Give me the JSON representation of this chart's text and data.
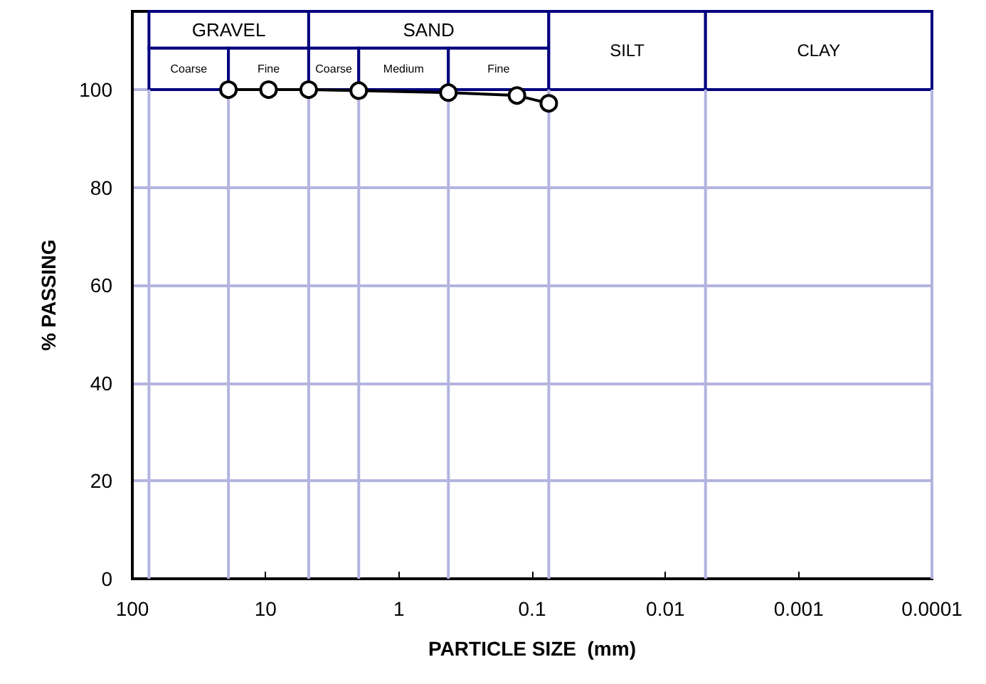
{
  "chart_data": {
    "type": "line",
    "xlabel": "PARTICLE SIZE  (mm)",
    "ylabel": "% PASSING",
    "series": [
      {
        "color": "#000000",
        "x": [
          19,
          9.5,
          4.75,
          2.0,
          0.425,
          0.13,
          0.075
        ],
        "values": [
          100,
          100,
          100,
          99.8,
          99.4,
          98.8,
          97.2
        ]
      }
    ],
    "xlim": [
      100,
      0.0001
    ],
    "xticks": [
      100,
      10,
      1,
      0.1,
      0.01,
      0.001,
      0.0001
    ],
    "log": "x",
    "ylim": [
      0,
      116
    ],
    "yticks": [
      0,
      20,
      40,
      60,
      80,
      100
    ],
    "grid": "y",
    "marker": "circle",
    "line_style": "solid",
    "bands": [
      {
        "axis": "x",
        "from": 75,
        "to": 4.75,
        "label": "GRAVEL",
        "color": "#ffffff"
      },
      {
        "axis": "x",
        "from": 75,
        "to": 19,
        "label": "Coarse",
        "color": "#ffffff"
      },
      {
        "axis": "x",
        "from": 19,
        "to": 4.75,
        "label": "Fine",
        "color": "#ffffff"
      },
      {
        "axis": "x",
        "from": 4.75,
        "to": 0.075,
        "label": "SAND",
        "color": "#ffffff"
      },
      {
        "axis": "x",
        "from": 4.75,
        "to": 2.0,
        "label": "Coarse",
        "color": "#ffffff"
      },
      {
        "axis": "x",
        "from": 2.0,
        "to": 0.425,
        "label": "Medium",
        "color": "#ffffff"
      },
      {
        "axis": "x",
        "from": 0.425,
        "to": 0.075,
        "label": "Fine",
        "color": "#ffffff"
      },
      {
        "axis": "x",
        "from": 0.075,
        "to": 0.005,
        "label": "SILT",
        "color": "#ffffff"
      },
      {
        "axis": "x",
        "from": 0.005,
        "to": 0.0001,
        "label": "CLAY",
        "color": "#ffffff"
      }
    ]
  }
}
